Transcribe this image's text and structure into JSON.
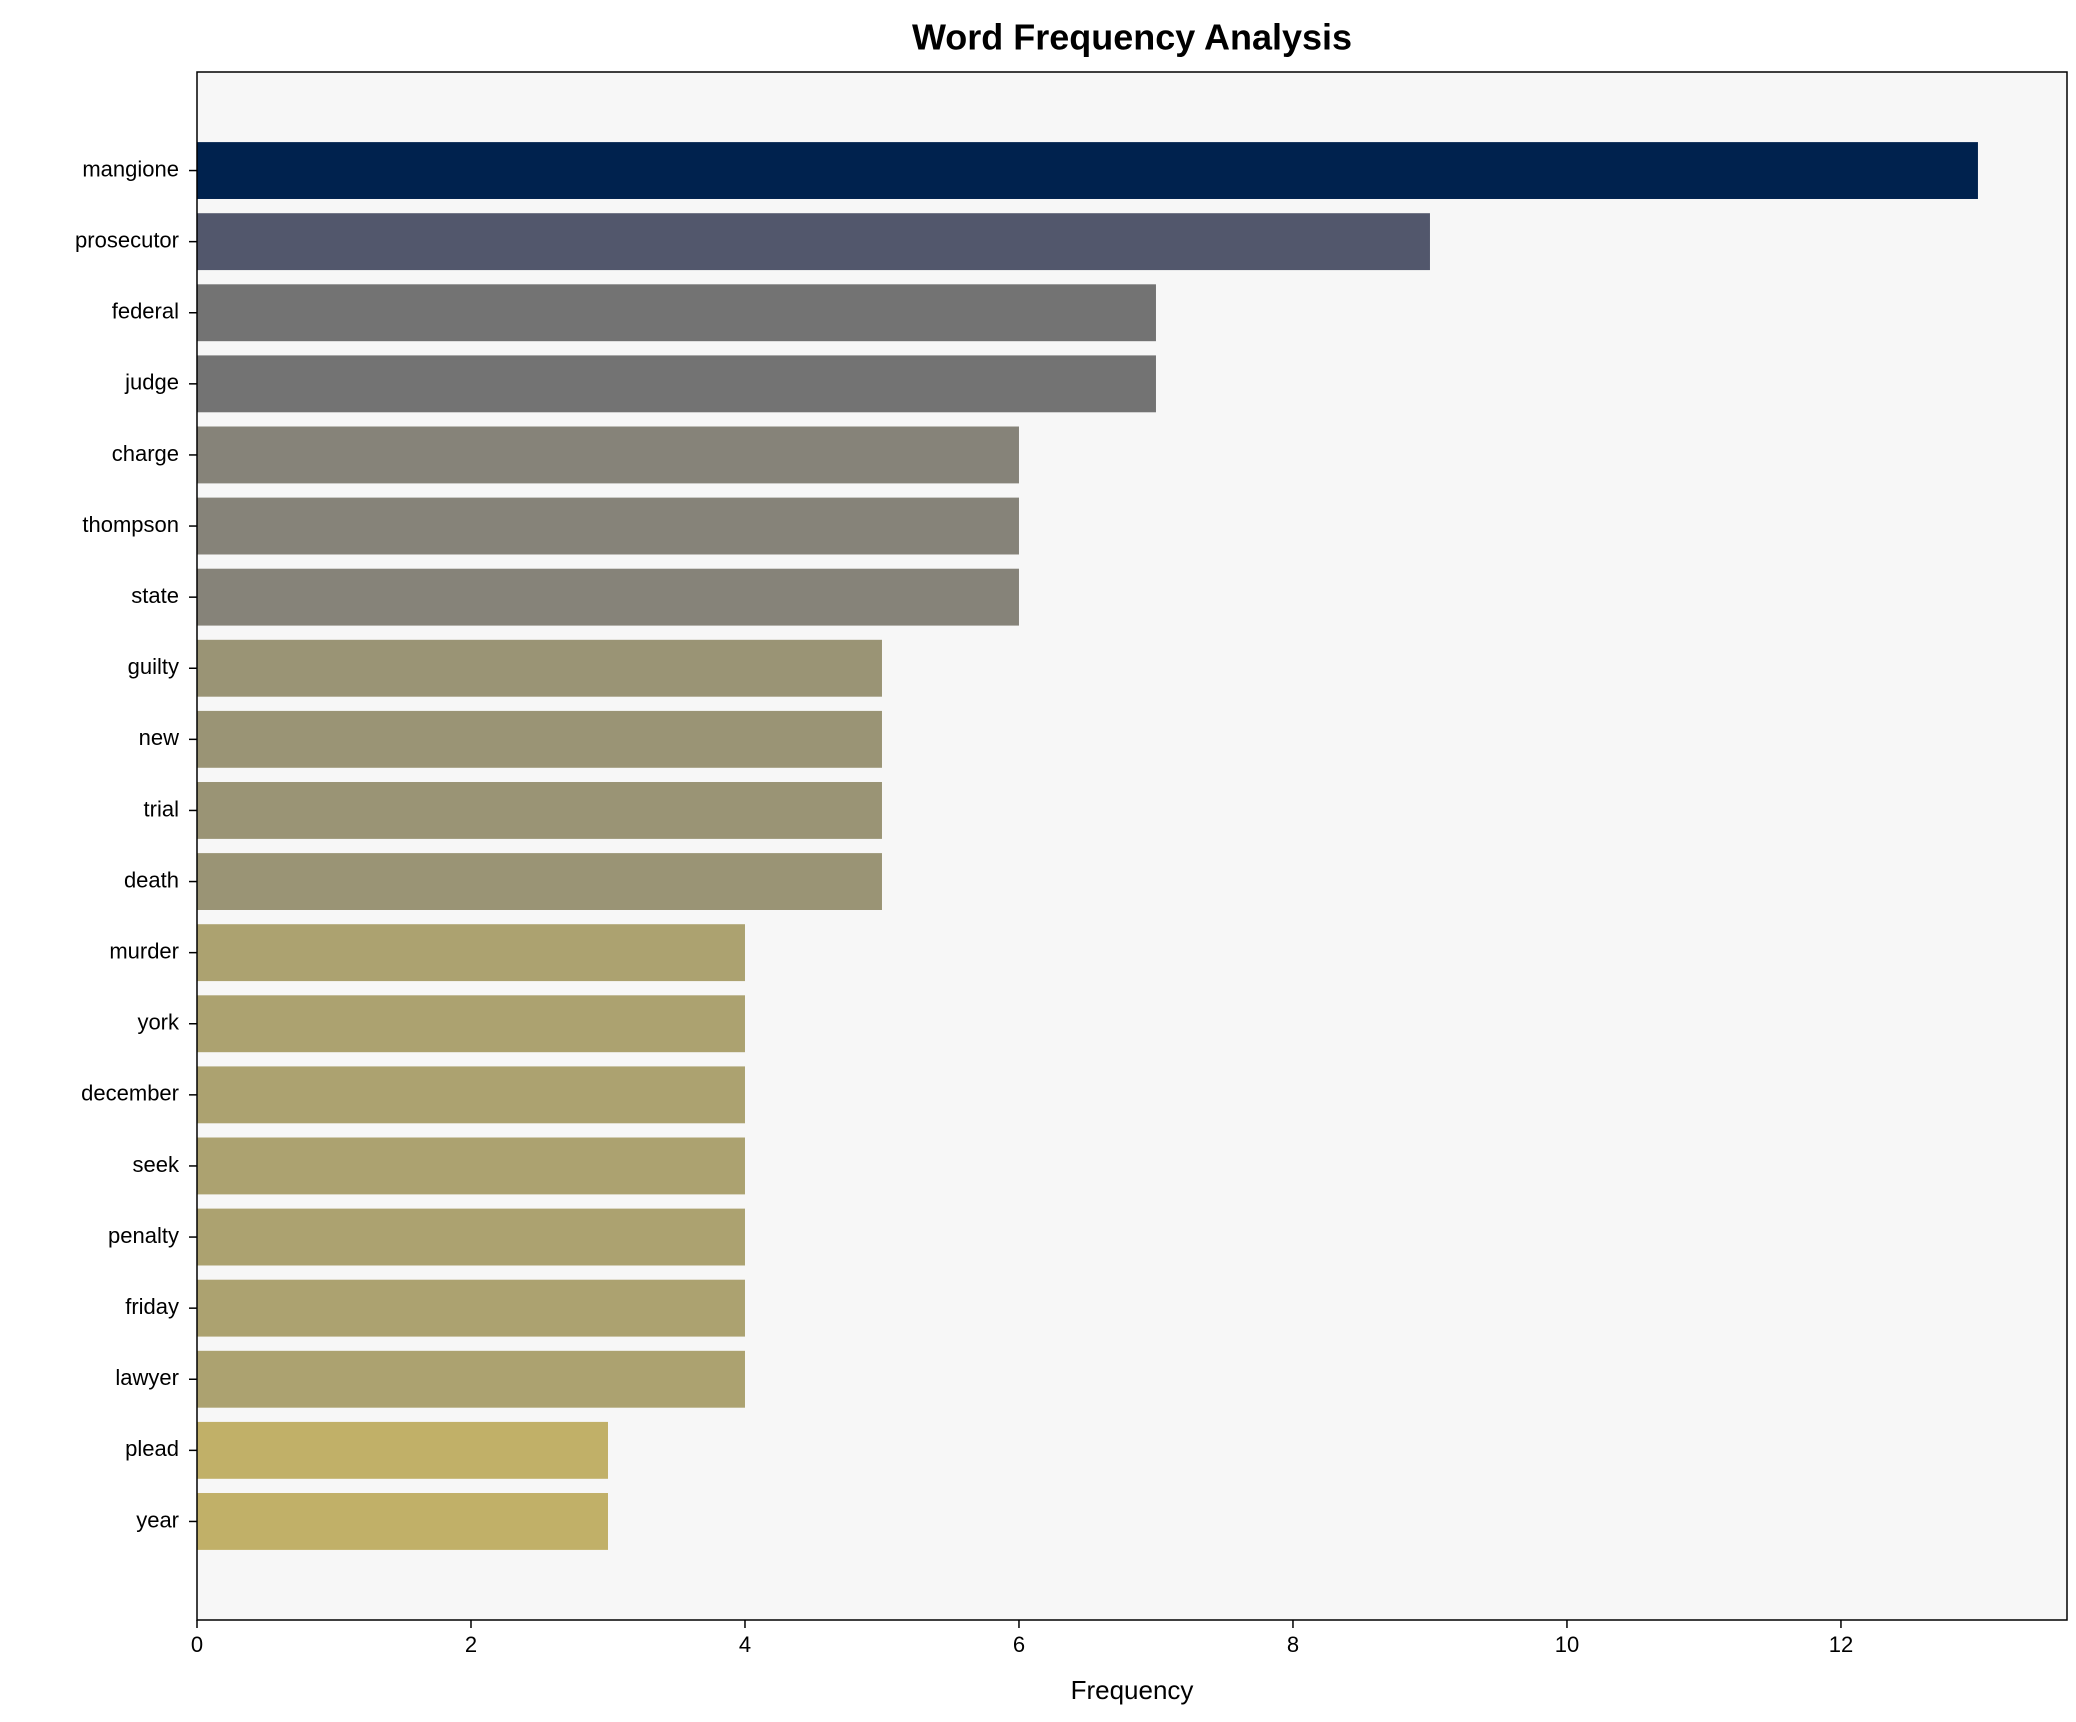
{
  "chart_data": {
    "type": "barh",
    "title": "Word Frequency Analysis",
    "xlabel": "Frequency",
    "categories": [
      "mangione",
      "prosecutor",
      "federal",
      "judge",
      "charge",
      "thompson",
      "state",
      "guilty",
      "new",
      "trial",
      "death",
      "murder",
      "york",
      "december",
      "seek",
      "penalty",
      "friday",
      "lawyer",
      "plead",
      "year"
    ],
    "values": [
      13,
      9,
      7,
      7,
      6,
      6,
      6,
      5,
      5,
      5,
      5,
      4,
      4,
      4,
      4,
      4,
      4,
      4,
      3,
      3
    ],
    "colors": [
      "#00224e",
      "#52576c",
      "#737373",
      "#737373",
      "#868379",
      "#868379",
      "#868379",
      "#9a9475",
      "#9a9475",
      "#9a9475",
      "#9a9475",
      "#aca270",
      "#aca270",
      "#aca270",
      "#aca270",
      "#aca270",
      "#aca270",
      "#aca270",
      "#c1b068",
      "#c1b068"
    ],
    "xlim": [
      0,
      13.65
    ],
    "xticks": [
      0,
      2,
      4,
      6,
      8,
      10,
      12
    ]
  }
}
